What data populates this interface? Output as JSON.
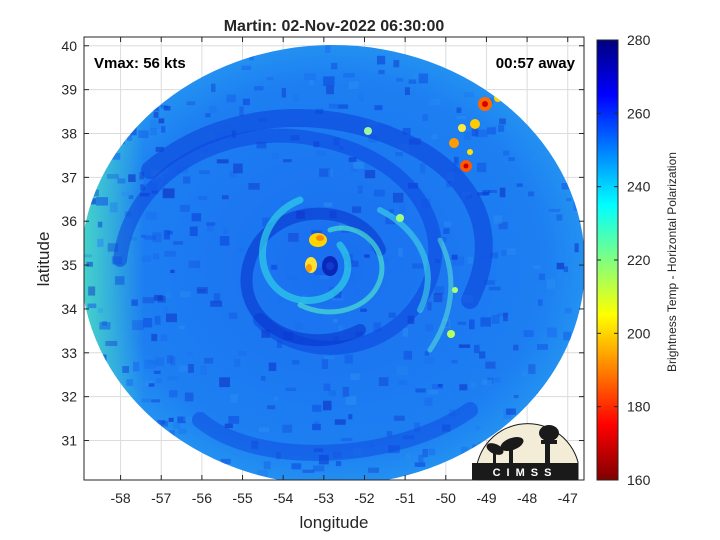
{
  "title": "Martin: 02-Nov-2022 06:30:00",
  "annotations": {
    "vmax": "Vmax: 56 kts",
    "time_away": "00:57 away"
  },
  "xaxis": {
    "label": "longitude",
    "ticks": [
      "-58",
      "-57",
      "-56",
      "-55",
      "-54",
      "-53",
      "-52",
      "-51",
      "-50",
      "-49",
      "-48",
      "-47"
    ]
  },
  "yaxis": {
    "label": "latitude",
    "ticks": [
      "31",
      "32",
      "33",
      "34",
      "35",
      "36",
      "37",
      "38",
      "39",
      "40"
    ]
  },
  "colorbar": {
    "label": "Brightness Temp - Horizontal Polarization",
    "ticks": [
      "160",
      "180",
      "200",
      "220",
      "240",
      "260",
      "280"
    ]
  },
  "logo": {
    "text": "CIMSS"
  },
  "chart_data": {
    "type": "heatmap",
    "title": "Martin: 02-Nov-2022 06:30:00",
    "xlabel": "longitude",
    "ylabel": "latitude",
    "xlim": [
      -58.9,
      -46.6
    ],
    "ylim": [
      30.1,
      40.2
    ],
    "grid": true,
    "colorbar": {
      "label": "Brightness Temp - Horizontal Polarization",
      "range": [
        160,
        280
      ],
      "colormap": "jet"
    },
    "storm_center": {
      "lon": -52.9,
      "lat": 35.1
    },
    "vmax_kts": 56,
    "annotations": [
      "Vmax: 56 kts",
      "00:57 away"
    ]
  }
}
